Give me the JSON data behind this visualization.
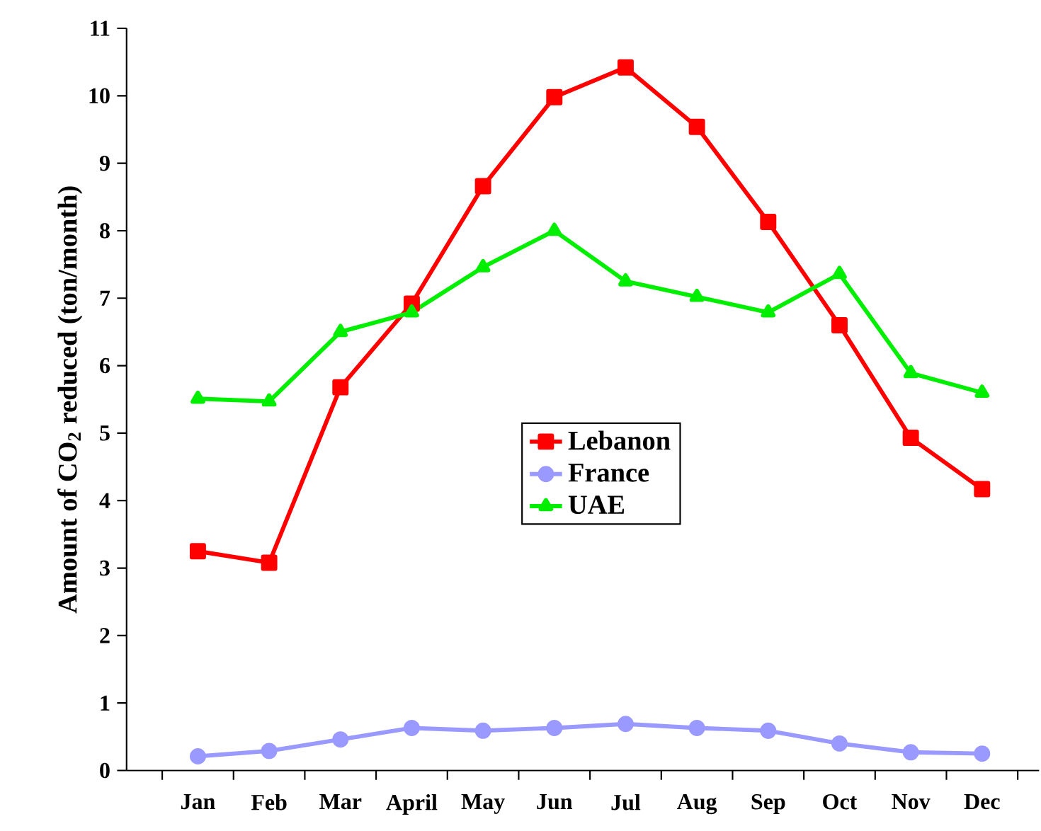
{
  "chart_data": {
    "type": "line",
    "ylabel": "Amount of CO$_{2}$ reduced (ton/month)",
    "categories": [
      "Jan",
      "Feb",
      "Mar",
      "April",
      "May",
      "Jun",
      "Jul",
      "Aug",
      "Sep",
      "Oct",
      "Nov",
      "Dec"
    ],
    "series": [
      {
        "name": "Lebanon",
        "color": "#ff0000",
        "marker": "square",
        "values": [
          3.25,
          3.08,
          5.68,
          6.92,
          8.66,
          9.98,
          10.42,
          9.54,
          8.13,
          6.6,
          4.93,
          4.17
        ]
      },
      {
        "name": "France",
        "color": "#9999ff",
        "marker": "circle",
        "values": [
          0.21,
          0.29,
          0.46,
          0.63,
          0.59,
          0.63,
          0.69,
          0.63,
          0.59,
          0.4,
          0.27,
          0.25
        ]
      },
      {
        "name": "UAE",
        "color": "#00ee00",
        "marker": "triangle",
        "values": [
          5.51,
          5.47,
          6.5,
          6.79,
          7.46,
          8.0,
          7.25,
          7.02,
          6.79,
          7.36,
          5.89,
          5.6
        ]
      }
    ],
    "ylim": [
      0,
      11
    ],
    "yticks": [
      0,
      1,
      2,
      3,
      4,
      5,
      6,
      7,
      8,
      9,
      10,
      11
    ],
    "grid": false,
    "legend": "center",
    "line_style": "solid"
  }
}
